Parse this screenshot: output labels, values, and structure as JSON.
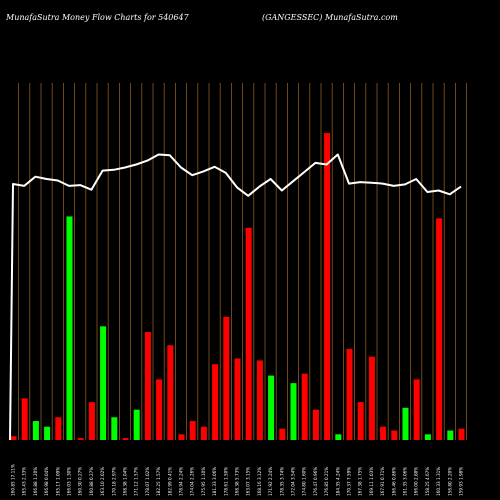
{
  "header": {
    "left": "MunafaSutra  Money Flow  Charts for 540647",
    "right": "(GANGESSEC) MunafaSutra.com"
  },
  "chart_data": {
    "type": "bar",
    "title": "",
    "ylabel": "",
    "xlabel": "",
    "grid": "vertical",
    "colors": {
      "up": "#00ff00",
      "down": "#ff0000",
      "line": "#ffffff",
      "grid": "#8b5a1e",
      "background": "#000000"
    },
    "categories": [
      "160.85 17.11%",
      "165.43 2.33%",
      "166.88 1.20%",
      "166.98 0.04%",
      "165.17 1.09%",
      "166.03 1.30%",
      "160.30 0.27%",
      "160.88 0.27%",
      "163.10 2.02%",
      "170.18 2.97%",
      "168.38 1.04%",
      "171.12 1.57%",
      "178.07 1.02%",
      "182.25 1.57%",
      "182.99 0.41%",
      "178.94 2.24%",
      "174.04 2.26%",
      "175.95 1.10%",
      "181.33 3.06%",
      "178.61 1.50%",
      "168.38 5.73%",
      "163.07 3.15%",
      "168.16 3.12%",
      "171.92 2.24%",
      "178.35 3.74%",
      "172.04 3.54%",
      "174.80 1.60%",
      "176.47 0.96%",
      "176.85 0.21%",
      "184.35 4.24%",
      "170.37 7.59%",
      "167.38 1.75%",
      "169.11 1.03%",
      "167.91 0.71%",
      "166.46 0.86%",
      "161.35 3.06%",
      "166.00 2.88%",
      "158.25 4.67%",
      "160.33 1.31%",
      "156.80 2.20%",
      "159.93 1.98%"
    ],
    "series": [
      {
        "role": "money-flow-bars",
        "values": [
          2,
          22,
          10,
          7,
          12,
          118,
          1,
          20,
          60,
          12,
          1,
          16,
          57,
          32,
          50,
          3,
          10,
          7,
          40,
          65,
          43,
          112,
          42,
          34,
          6,
          30,
          35,
          16,
          162,
          3,
          48,
          20,
          44,
          7,
          5,
          17,
          32,
          3,
          117,
          5,
          6
        ],
        "up": [
          false,
          false,
          true,
          true,
          false,
          true,
          false,
          false,
          true,
          true,
          false,
          true,
          false,
          false,
          false,
          false,
          false,
          false,
          false,
          false,
          false,
          false,
          false,
          true,
          false,
          true,
          false,
          false,
          false,
          true,
          false,
          false,
          false,
          false,
          false,
          true,
          false,
          true,
          false,
          true,
          false
        ]
      },
      {
        "role": "price-line",
        "values": [
          162.5,
          163,
          160.6,
          161.2,
          161.6,
          163,
          162.8,
          164,
          159,
          158.8,
          158.2,
          157.4,
          156.4,
          154.8,
          155,
          158.2,
          160.2,
          159.2,
          158,
          159.6,
          163.4,
          165.6,
          163.2,
          161.2,
          164.2,
          161.8,
          159.4,
          157,
          157.4,
          154.8,
          162.4,
          162,
          162.2,
          162.4,
          163,
          162.6,
          161.2,
          164.6,
          164.2,
          165.2,
          163.2
        ]
      }
    ],
    "bars_ylim": [
      0,
      190
    ],
    "line_ylim": [
      151,
      185
    ]
  }
}
